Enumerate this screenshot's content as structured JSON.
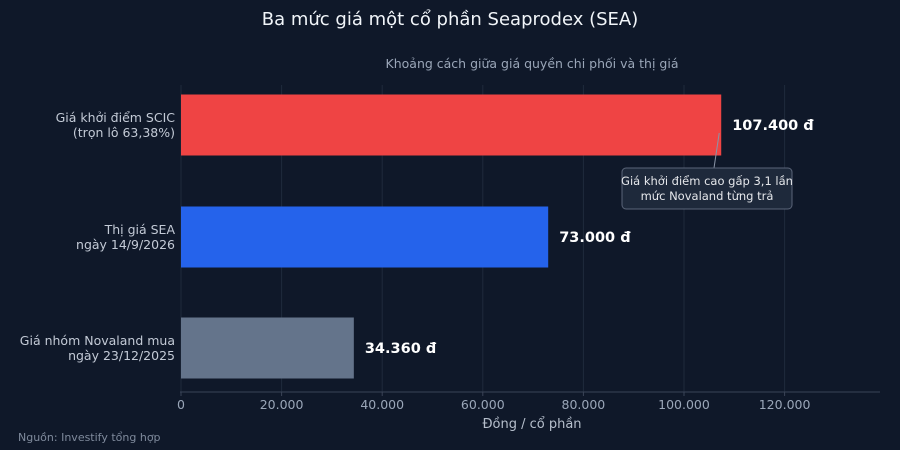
{
  "chart_data": {
    "type": "bar",
    "orientation": "horizontal",
    "title": "Ba mức giá một cổ phần Seaprodex (SEA)",
    "subtitle": "Khoảng cách giữa giá quyền chi phối và thị giá",
    "categories": [
      [
        "Giá khởi điểm SCIC",
        "(trọn lô 63,38%)"
      ],
      [
        "Thị giá SEA",
        "ngày 14/9/2026"
      ],
      [
        "Giá nhóm Novaland mua",
        "ngày 23/12/2025"
      ]
    ],
    "values": [
      107400,
      73000,
      34360
    ],
    "value_labels": [
      "107.400 đ",
      "73.000 đ",
      "34.360 đ"
    ],
    "colors": [
      "#ef4444",
      "#2563eb",
      "#64748b"
    ],
    "xlabel": "Đồng / cổ phần",
    "xlim": [
      0,
      140000
    ],
    "xticks": [
      0,
      20000,
      40000,
      60000,
      80000,
      100000,
      120000
    ],
    "xtick_labels": [
      "0",
      "20.000",
      "40.000",
      "60.000",
      "80.000",
      "100.000",
      "120.000"
    ],
    "grid": true,
    "annotation": {
      "lines": [
        "Giá khởi điểm cao gấp 3,1 lần",
        "mức Novaland từng trả"
      ],
      "target_category_index": 0
    },
    "source": "Nguồn: Investify tổng hợp"
  }
}
